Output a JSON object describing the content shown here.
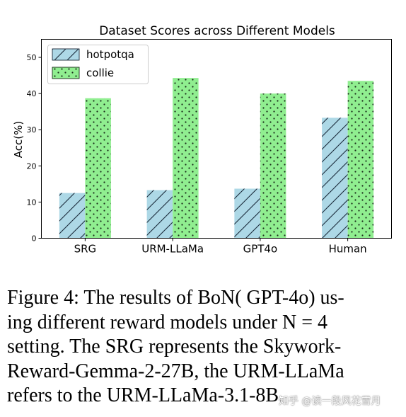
{
  "chart_data": {
    "type": "bar",
    "title": "Dataset Scores across Different Models",
    "ylabel": "Acc(%)",
    "xlabel": "",
    "categories": [
      "SRG",
      "URM-LLaMa",
      "GPT4o",
      "Human"
    ],
    "series": [
      {
        "name": "hotpotqa",
        "values": [
          12.5,
          13.3,
          13.7,
          33.3
        ],
        "color": "#add8e6",
        "hatch": "diagonal"
      },
      {
        "name": "collie",
        "values": [
          38.7,
          44.3,
          40.0,
          43.5
        ],
        "color": "#90ee90",
        "hatch": "dots"
      }
    ],
    "ylim": [
      0,
      55
    ],
    "yticks": [
      0,
      10,
      20,
      30,
      40,
      50
    ],
    "legend_position": "top-left",
    "grid": false
  },
  "caption": {
    "lines": [
      "Figure 4: The results of BoN( GPT-4o) us-",
      "ing different reward models under N = 4",
      "setting. The SRG represents the Skywork-",
      "Reward-Gemma-2-27B, the URM-LLaMa",
      "refers to the URM-LLaMa-3.1-8B."
    ]
  },
  "watermark": "知乎 @读一段风花雪月"
}
